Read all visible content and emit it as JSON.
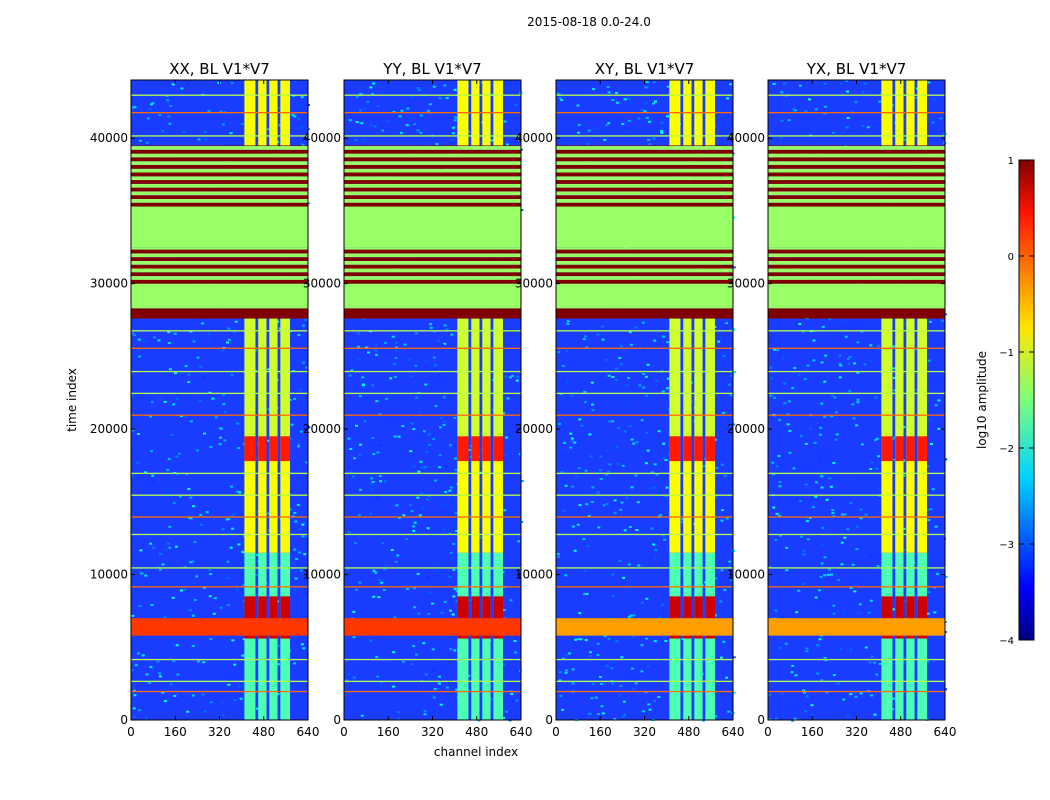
{
  "figure_title": "2015-08-18 0.0-24.0",
  "colors": {
    "background": "#ffffff",
    "stripe_dark_red": "#800000",
    "flag_green": "#99ff66",
    "noise_base": "#1a3cff"
  },
  "chart_data": {
    "type": "heatmap",
    "xlabel": "channel index",
    "ylabel": "time index",
    "xlim": [
      0,
      640
    ],
    "ylim": [
      0,
      44000
    ],
    "xticks": [
      0,
      160,
      320,
      480,
      640
    ],
    "yticks": [
      0,
      10000,
      20000,
      30000,
      40000
    ],
    "panels": [
      {
        "title": "XX, BL V1*V7"
      },
      {
        "title": "YY, BL V1*V7"
      },
      {
        "title": "XY, BL V1*V7"
      },
      {
        "title": "YX, BL V1*V7"
      }
    ],
    "colorbar": {
      "label": "log10 amplitude",
      "range": [
        -4,
        1
      ],
      "ticks": [
        1,
        0,
        -1,
        -2,
        -3,
        -4
      ],
      "colormap": "jet"
    },
    "flag_bands": [
      {
        "from": 27600,
        "to": 28300,
        "level": 1
      },
      {
        "from": 28300,
        "to": 30000,
        "level": -1.1
      },
      {
        "from": 30000,
        "to": 32500,
        "level": "stripes"
      },
      {
        "from": 32500,
        "to": 35300,
        "level": -1.1
      },
      {
        "from": 35300,
        "to": 39500,
        "level": "stripes"
      }
    ],
    "signal_channels": [
      {
        "from": 410,
        "to": 450
      },
      {
        "from": 460,
        "to": 490
      },
      {
        "from": 500,
        "to": 530
      },
      {
        "from": 540,
        "to": 575
      }
    ]
  }
}
